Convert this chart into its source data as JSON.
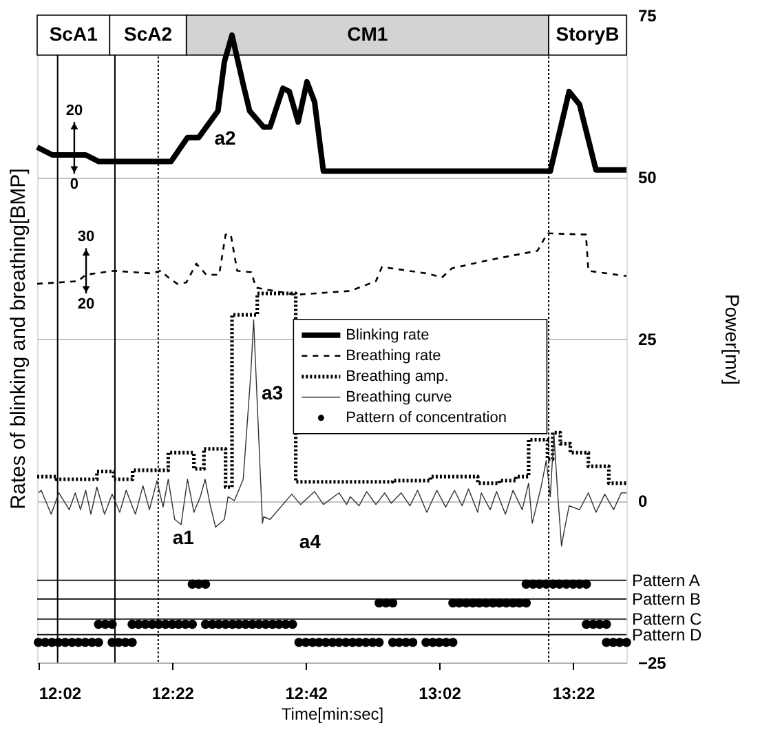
{
  "chart_data": {
    "type": "line",
    "xlabel": "Time[min:sec]",
    "ylabel": "Rates of blinking and breathing[BMP]",
    "y2label": "Power[mv]",
    "xlim": [
      12.03,
      13.5
    ],
    "xticks": [
      {
        "value": 12.033,
        "label": "12:02"
      },
      {
        "value": 12.367,
        "label": "12:22"
      },
      {
        "value": 12.7,
        "label": "12:42"
      },
      {
        "value": 13.033,
        "label": "13:02"
      },
      {
        "value": 13.367,
        "label": "13:22"
      }
    ],
    "y2lim": [
      -25,
      75
    ],
    "y2ticks": [
      -25,
      0,
      25,
      50,
      75
    ],
    "grid": "y",
    "legend": "right",
    "series": [
      {
        "name": "Blinking rate",
        "axis": "y2",
        "color": "#000000",
        "line_style": "solid",
        "x": [
          12.03,
          12.068,
          12.151,
          12.183,
          12.364,
          12.405,
          12.433,
          12.481,
          12.497,
          12.516,
          12.544,
          12.56,
          12.595,
          12.611,
          12.643,
          12.659,
          12.681,
          12.703,
          12.722,
          12.744,
          13.31,
          13.357,
          13.383,
          13.424,
          13.5
        ],
        "values": [
          54.6,
          53.4,
          53.4,
          52.4,
          52.4,
          56.1,
          56.1,
          60.2,
          67.8,
          71.9,
          64.3,
          60.2,
          57.7,
          57.7,
          63.7,
          63.2,
          58.5,
          64.7,
          61.6,
          50.9,
          50.9,
          63.2,
          61.2,
          51.1,
          51.1
        ]
      },
      {
        "name": "Breathing rate",
        "axis": "y2",
        "color": "#000000",
        "line_style": "dashed",
        "x": [
          12.03,
          12.132,
          12.151,
          12.221,
          12.316,
          12.338,
          12.357,
          12.379,
          12.402,
          12.427,
          12.452,
          12.484,
          12.5,
          12.513,
          12.529,
          12.564,
          12.576,
          12.675,
          12.811,
          12.875,
          12.89,
          13.002,
          13.04,
          13.065,
          13.16,
          13.278,
          13.303,
          13.399,
          13.405,
          13.5
        ],
        "values": [
          33.5,
          33.9,
          34.9,
          35.5,
          35.1,
          35.5,
          34.5,
          33.5,
          33.7,
          36.6,
          34.9,
          34.9,
          41.1,
          41.1,
          35.5,
          35.3,
          32.9,
          31.8,
          32.4,
          33.9,
          36.1,
          35.1,
          34.5,
          35.9,
          37.2,
          38.6,
          41.3,
          41.1,
          35.5,
          34.7
        ]
      },
      {
        "name": "Breathing amp.",
        "type": "step",
        "axis": "y2",
        "color": "#000000",
        "line_style": "dotted",
        "x": [
          12.03,
          12.078,
          12.179,
          12.221,
          12.268,
          12.357,
          12.421,
          12.446,
          12.5,
          12.516,
          12.579,
          12.675,
          12.916,
          13.011,
          13.129,
          13.183,
          13.224,
          13.256,
          13.303,
          13.316,
          13.335,
          13.36,
          13.405,
          13.456,
          13.5
        ],
        "values": [
          3.7,
          3.3,
          4.5,
          3.3,
          4.7,
          7.4,
          4.9,
          8.0,
          2.1,
          28.7,
          32.0,
          2.9,
          3.1,
          3.7,
          2.7,
          3.1,
          3.7,
          9.4,
          6.4,
          10.5,
          8.8,
          7.4,
          5.3,
          2.7,
          2.7
        ]
      },
      {
        "name": "Breathing curve",
        "axis": "y2",
        "color": "#333333",
        "line_style": "solid",
        "x": [
          12.033,
          12.04,
          12.065,
          12.084,
          12.11,
          12.125,
          12.138,
          12.151,
          12.164,
          12.179,
          12.198,
          12.217,
          12.236,
          12.252,
          12.275,
          12.294,
          12.31,
          12.329,
          12.344,
          12.357,
          12.373,
          12.389,
          12.405,
          12.421,
          12.437,
          12.449,
          12.462,
          12.475,
          12.497,
          12.506,
          12.522,
          12.544,
          12.563,
          12.57,
          12.592,
          12.595,
          12.611,
          12.665,
          12.687,
          12.722,
          12.744,
          12.783,
          12.802,
          12.811,
          12.833,
          12.852,
          12.875,
          12.897,
          12.913,
          12.938,
          12.96,
          12.979,
          13.002,
          13.027,
          13.049,
          13.071,
          13.09,
          13.106,
          13.129,
          13.138,
          13.16,
          13.176,
          13.198,
          13.217,
          13.24,
          13.256,
          13.265,
          13.287,
          13.3,
          13.31,
          13.319,
          13.329,
          13.338,
          13.344,
          13.357,
          13.383,
          13.405,
          13.424,
          13.446,
          13.468,
          13.487,
          13.5
        ],
        "values": [
          1.2,
          1.6,
          -2.1,
          1.2,
          -1.4,
          1.2,
          -1.4,
          1.6,
          -2.1,
          2.1,
          -2.1,
          1.0,
          -1.8,
          1.6,
          -2.1,
          2.3,
          -1.4,
          3.1,
          -1.0,
          3.3,
          -2.9,
          -3.7,
          3.3,
          -1.8,
          0.6,
          3.3,
          -0.8,
          -4.1,
          -2.9,
          0.6,
          0,
          3.3,
          19.7,
          27.9,
          -3.5,
          -2.5,
          -2.9,
          1.0,
          -0.6,
          1.4,
          -0.6,
          1.2,
          -0.6,
          0.6,
          -0.8,
          1.4,
          -0.6,
          1.2,
          -0.4,
          1.2,
          -0.8,
          1.6,
          -1.8,
          1.6,
          -1.0,
          1.6,
          -0.8,
          1.8,
          -1.8,
          1.2,
          -1.4,
          1.4,
          -2.1,
          1.6,
          -1.4,
          2.7,
          -3.5,
          2.1,
          6.2,
          0.6,
          10.3,
          0.6,
          -7.0,
          -4.9,
          -0.8,
          -1.4,
          1.2,
          -1.8,
          1.0,
          -1.4,
          1.2,
          1.2
        ]
      },
      {
        "name": "Pattern of concentration",
        "type": "scatter",
        "axis": "y2",
        "color": "#000000",
        "marker": "circle",
        "x": [
          12.417,
          12.433,
          12.45,
          13.25,
          13.267,
          13.283,
          13.3,
          13.317,
          13.333,
          13.35,
          13.367,
          13.383,
          13.4,
          12.883,
          12.9,
          12.917,
          13.067,
          13.083,
          13.1,
          13.117,
          13.133,
          13.15,
          13.167,
          13.183,
          13.2,
          13.217,
          13.233,
          13.25,
          12.183,
          12.2,
          12.217,
          12.267,
          12.283,
          12.3,
          12.317,
          12.333,
          12.35,
          12.367,
          12.383,
          12.4,
          12.417,
          12.45,
          12.467,
          12.483,
          12.5,
          12.517,
          12.533,
          12.55,
          12.567,
          12.583,
          12.6,
          12.617,
          12.633,
          12.65,
          12.667,
          13.4,
          13.417,
          13.433,
          13.45,
          12.033,
          12.05,
          12.067,
          12.083,
          12.1,
          12.117,
          12.133,
          12.15,
          12.167,
          12.183,
          12.217,
          12.233,
          12.25,
          12.267,
          12.683,
          12.7,
          12.717,
          12.733,
          12.75,
          12.767,
          12.783,
          12.8,
          12.817,
          12.833,
          12.85,
          12.867,
          12.883,
          12.917,
          12.933,
          12.95,
          12.967,
          13.0,
          13.017,
          13.033,
          13.05,
          13.067,
          13.45,
          13.467,
          13.483,
          13.5
        ],
        "values": [
          -12.9,
          -12.9,
          -12.9,
          -12.9,
          -12.9,
          -12.9,
          -12.9,
          -12.9,
          -12.9,
          -12.9,
          -12.9,
          -12.9,
          -12.9,
          -15.8,
          -15.8,
          -15.8,
          -15.8,
          -15.8,
          -15.8,
          -15.8,
          -15.8,
          -15.8,
          -15.8,
          -15.8,
          -15.8,
          -15.8,
          -15.8,
          -15.8,
          -19.1,
          -19.1,
          -19.1,
          -19.1,
          -19.1,
          -19.1,
          -19.1,
          -19.1,
          -19.1,
          -19.1,
          -19.1,
          -19.1,
          -19.1,
          -19.1,
          -19.1,
          -19.1,
          -19.1,
          -19.1,
          -19.1,
          -19.1,
          -19.1,
          -19.1,
          -19.1,
          -19.1,
          -19.1,
          -19.1,
          -19.1,
          -19.1,
          -19.1,
          -19.1,
          -19.1,
          -21.9,
          -21.9,
          -21.9,
          -21.9,
          -21.9,
          -21.9,
          -21.9,
          -21.9,
          -21.9,
          -21.9,
          -21.9,
          -21.9,
          -21.9,
          -21.9,
          -21.9,
          -21.9,
          -21.9,
          -21.9,
          -21.9,
          -21.9,
          -21.9,
          -21.9,
          -21.9,
          -21.9,
          -21.9,
          -21.9,
          -21.9,
          -21.9,
          -21.9,
          -21.9,
          -21.9,
          -21.9,
          -21.9,
          -21.9,
          -21.9,
          -21.9,
          -21.9,
          -21.9,
          -21.9,
          -21.9
        ]
      }
    ],
    "ref_lines": [
      {
        "axis": "x",
        "value": 12.081,
        "line_style": "solid"
      },
      {
        "axis": "x",
        "value": 12.224,
        "line_style": "solid"
      },
      {
        "axis": "x",
        "value": 12.332,
        "line_style": "dotted"
      },
      {
        "axis": "x",
        "value": 13.306,
        "line_style": "dotted"
      },
      {
        "axis": "y2",
        "value": -12.3,
        "label": "Pattern A"
      },
      {
        "axis": "y2",
        "value": -15.2,
        "label": "Pattern B"
      },
      {
        "axis": "y2",
        "value": -18.3,
        "label": "Pattern C"
      },
      {
        "axis": "y2",
        "value": -20.7,
        "label": "Pattern D"
      }
    ],
    "bands": [
      {
        "axis": "x",
        "from": 12.03,
        "to": 12.211,
        "label": "ScA1",
        "color": "#ffffff"
      },
      {
        "axis": "x",
        "from": 12.402,
        "to": 13.306,
        "label": "CM1",
        "color": "#d3d3d3"
      },
      {
        "axis": "x",
        "from": 12.211,
        "to": 12.402,
        "label": "ScA2",
        "color": "#ffffff"
      },
      {
        "axis": "x",
        "from": 13.306,
        "to": 13.5,
        "label": "StoryB",
        "color": "#ffffff"
      }
    ],
    "annotations": [
      "a1",
      "a2",
      "a3",
      "a4",
      "20",
      "0",
      "30",
      "20"
    ]
  }
}
